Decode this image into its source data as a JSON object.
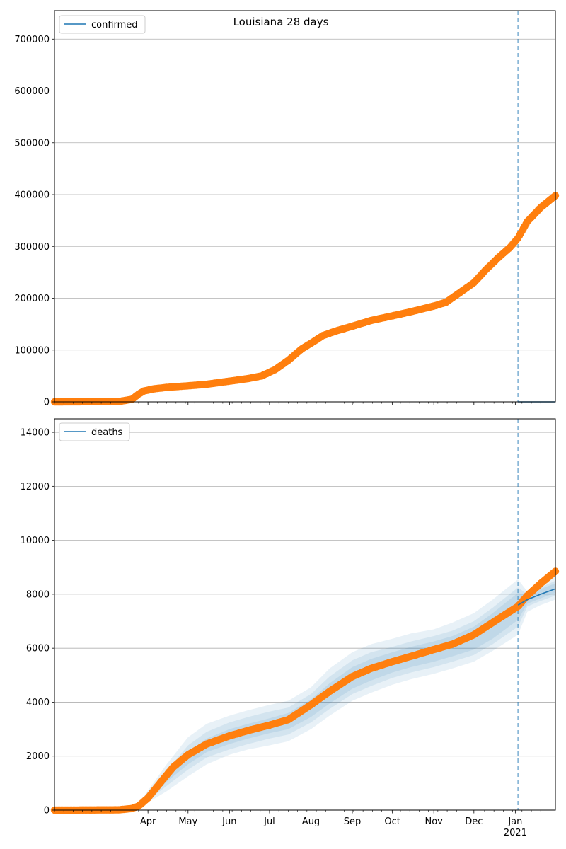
{
  "title": "Louisiana 28 days",
  "colors": {
    "model": "#1f77b4",
    "observed": "#ff7f0e",
    "band": "#1f77b4",
    "vline": "#1f77b4",
    "grid": "#b0b0b0"
  },
  "x_axis": {
    "start": "2020-01-22",
    "end": "2021-01-31",
    "month_ticks": [
      {
        "date": "2020-04-01",
        "label": "Apr"
      },
      {
        "date": "2020-05-01",
        "label": "May"
      },
      {
        "date": "2020-06-01",
        "label": "Jun"
      },
      {
        "date": "2020-07-01",
        "label": "Jul"
      },
      {
        "date": "2020-08-01",
        "label": "Aug"
      },
      {
        "date": "2020-09-01",
        "label": "Sep"
      },
      {
        "date": "2020-10-01",
        "label": "Oct"
      },
      {
        "date": "2020-11-01",
        "label": "Nov"
      },
      {
        "date": "2020-12-01",
        "label": "Dec"
      },
      {
        "date": "2021-01-01",
        "label": "Jan"
      }
    ],
    "year_label": "2021",
    "forecast_date": "2021-01-03"
  },
  "chart_data": [
    {
      "type": "line",
      "legend": "confirmed",
      "legend_position": "top-left",
      "grid": true,
      "ylim": [
        0,
        755000
      ],
      "yticks": [
        {
          "value": 0,
          "label": "0"
        },
        {
          "value": 100000,
          "label": "100000"
        },
        {
          "value": 200000,
          "label": "200000"
        },
        {
          "value": 300000,
          "label": "300000"
        },
        {
          "value": 400000,
          "label": "400000"
        },
        {
          "value": 500000,
          "label": "500000"
        },
        {
          "value": 600000,
          "label": "600000"
        },
        {
          "value": 700000,
          "label": "700000"
        }
      ],
      "observed": {
        "x": [
          "2020-01-22",
          "2020-03-10",
          "2020-03-20",
          "2020-03-25",
          "2020-03-29",
          "2020-04-05",
          "2020-04-15",
          "2020-05-01",
          "2020-05-15",
          "2020-06-01",
          "2020-06-15",
          "2020-06-25",
          "2020-07-05",
          "2020-07-15",
          "2020-07-25",
          "2020-08-01",
          "2020-08-10",
          "2020-08-20",
          "2020-09-01",
          "2020-09-15",
          "2020-10-01",
          "2020-10-15",
          "2020-11-01",
          "2020-11-10",
          "2020-11-20",
          "2020-12-01",
          "2020-12-10",
          "2020-12-20",
          "2020-12-28",
          "2021-01-03",
          "2021-01-10",
          "2021-01-20",
          "2021-01-31"
        ],
        "y": [
          0,
          500,
          5000,
          15000,
          21000,
          25000,
          28000,
          31000,
          34000,
          40000,
          45000,
          50000,
          62000,
          80000,
          102000,
          113000,
          128000,
          137000,
          146000,
          157000,
          166000,
          174000,
          185000,
          192000,
          210000,
          230000,
          255000,
          280000,
          298000,
          316000,
          348000,
          375000,
          398000
        ]
      },
      "model": {
        "x": [
          "2021-01-03",
          "2021-01-31"
        ],
        "y": [
          0,
          0
        ]
      }
    },
    {
      "type": "line",
      "legend": "deaths",
      "legend_position": "top-left",
      "grid": true,
      "ylim": [
        0,
        14500
      ],
      "yticks": [
        {
          "value": 0,
          "label": "0"
        },
        {
          "value": 2000,
          "label": "2000"
        },
        {
          "value": 4000,
          "label": "4000"
        },
        {
          "value": 6000,
          "label": "6000"
        },
        {
          "value": 8000,
          "label": "8000"
        },
        {
          "value": 10000,
          "label": "10000"
        },
        {
          "value": 12000,
          "label": "12000"
        },
        {
          "value": 14000,
          "label": "14000"
        }
      ],
      "observed": {
        "x": [
          "2020-01-22",
          "2020-03-10",
          "2020-03-20",
          "2020-03-25",
          "2020-04-01",
          "2020-04-10",
          "2020-04-20",
          "2020-05-01",
          "2020-05-15",
          "2020-06-01",
          "2020-06-15",
          "2020-07-01",
          "2020-07-15",
          "2020-08-01",
          "2020-08-15",
          "2020-09-01",
          "2020-09-15",
          "2020-10-01",
          "2020-10-15",
          "2020-11-01",
          "2020-11-15",
          "2020-12-01",
          "2020-12-15",
          "2021-01-03",
          "2021-01-10",
          "2021-01-20",
          "2021-01-31"
        ],
        "y": [
          0,
          10,
          60,
          150,
          450,
          1000,
          1600,
          2050,
          2450,
          2750,
          2950,
          3150,
          3350,
          3900,
          4400,
          4950,
          5250,
          5500,
          5700,
          5950,
          6150,
          6500,
          6950,
          7550,
          7950,
          8400,
          8850
        ]
      },
      "model": {
        "x": [
          "2021-01-03",
          "2021-01-10",
          "2021-01-20",
          "2021-01-31"
        ],
        "y": [
          7600,
          7800,
          8000,
          8200
        ]
      },
      "bands": [
        {
          "x": [
            "2020-03-25",
            "2020-04-05",
            "2020-04-15",
            "2020-05-01",
            "2020-05-15",
            "2020-06-01",
            "2020-06-15",
            "2020-07-01",
            "2020-07-15",
            "2020-08-01",
            "2020-08-15",
            "2020-09-01",
            "2020-09-15",
            "2020-10-01",
            "2020-10-15",
            "2020-11-01",
            "2020-11-15",
            "2020-12-01",
            "2020-12-15",
            "2021-01-03",
            "2021-01-10",
            "2021-01-20",
            "2021-01-31"
          ],
          "lower": [
            80,
            400,
            700,
            1250,
            1700,
            2050,
            2250,
            2400,
            2550,
            3000,
            3500,
            4050,
            4350,
            4650,
            4850,
            5050,
            5250,
            5500,
            5900,
            6500,
            7350,
            7600,
            7800
          ],
          "upper": [
            250,
            1000,
            1700,
            2700,
            3200,
            3500,
            3700,
            3900,
            4050,
            4550,
            5250,
            5850,
            6150,
            6350,
            6550,
            6700,
            6950,
            7300,
            7800,
            8550,
            8100,
            8350,
            8650
          ]
        },
        {
          "x": [
            "2020-03-25",
            "2020-04-05",
            "2020-04-15",
            "2020-05-01",
            "2020-05-15",
            "2020-06-01",
            "2020-06-15",
            "2020-07-01",
            "2020-07-15",
            "2020-08-01",
            "2020-08-15",
            "2020-09-01",
            "2020-09-15",
            "2020-10-01",
            "2020-10-15",
            "2020-11-01",
            "2020-11-15",
            "2020-12-01",
            "2020-12-15",
            "2021-01-03",
            "2021-01-10",
            "2021-01-20",
            "2021-01-31"
          ],
          "lower": [
            110,
            520,
            900,
            1500,
            1950,
            2250,
            2450,
            2650,
            2800,
            3250,
            3750,
            4300,
            4600,
            4900,
            5100,
            5300,
            5500,
            5750,
            6150,
            6800,
            7550,
            7750,
            7950
          ],
          "upper": [
            210,
            850,
            1450,
            2400,
            2900,
            3250,
            3450,
            3650,
            3800,
            4300,
            4950,
            5550,
            5850,
            6050,
            6250,
            6450,
            6650,
            7000,
            7500,
            8250,
            8000,
            8250,
            8500
          ]
        },
        {
          "x": [
            "2020-03-25",
            "2020-04-05",
            "2020-04-15",
            "2020-05-01",
            "2020-05-15",
            "2020-06-01",
            "2020-06-15",
            "2020-07-01",
            "2020-07-15",
            "2020-08-01",
            "2020-08-15",
            "2020-09-01",
            "2020-09-15",
            "2020-10-01",
            "2020-10-15",
            "2020-11-01",
            "2020-11-15",
            "2020-12-01",
            "2020-12-15",
            "2021-01-03",
            "2021-01-10",
            "2021-01-20",
            "2021-01-31"
          ],
          "lower": [
            130,
            600,
            1050,
            1700,
            2150,
            2450,
            2650,
            2850,
            3000,
            3450,
            3950,
            4500,
            4800,
            5100,
            5300,
            5500,
            5700,
            5950,
            6350,
            7050,
            7650,
            7850,
            8050
          ],
          "upper": [
            180,
            720,
            1250,
            2150,
            2650,
            3000,
            3200,
            3400,
            3600,
            4100,
            4700,
            5300,
            5600,
            5850,
            6050,
            6250,
            6450,
            6800,
            7300,
            8050,
            7950,
            8200,
            8400
          ]
        }
      ]
    }
  ]
}
